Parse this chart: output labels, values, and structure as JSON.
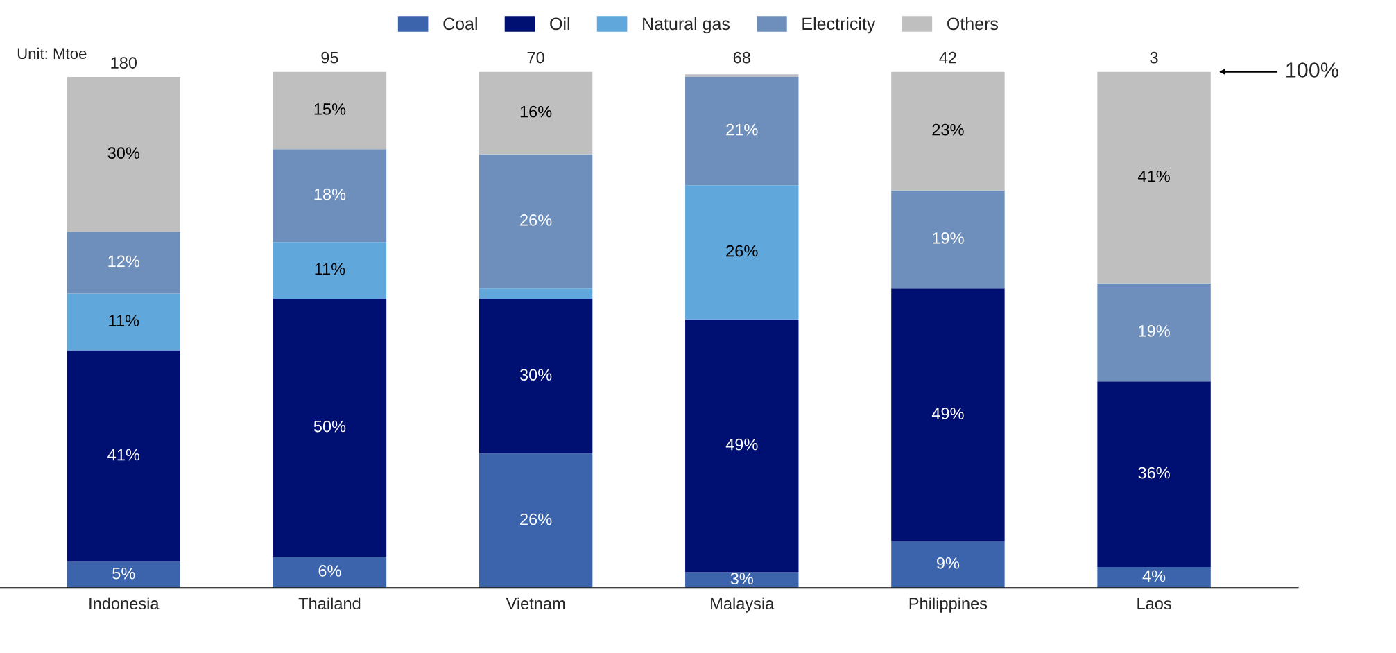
{
  "chart_data": {
    "type": "bar",
    "stacked": true,
    "categories": [
      "Indonesia",
      "Thailand",
      "Vietnam",
      "Malaysia",
      "Philippines",
      "Laos"
    ],
    "series": [
      {
        "name": "Coal",
        "color": "#3c64ad",
        "values": [
          5,
          6,
          26,
          3,
          9,
          4
        ],
        "value_labels": [
          "5%",
          "6%",
          "26%",
          "3%",
          "9%",
          "4%"
        ]
      },
      {
        "name": "Oil",
        "color": "#000f72",
        "values": [
          41,
          50,
          30,
          49,
          49,
          36
        ],
        "value_labels": [
          "41%",
          "50%",
          "30%",
          "49%",
          "49%",
          "36%"
        ]
      },
      {
        "name": "Natural gas",
        "color": "#60a8dc",
        "values": [
          11,
          11,
          2,
          26,
          0,
          0
        ],
        "value_labels": [
          "11%",
          "11%",
          null,
          "26%",
          null,
          null
        ]
      },
      {
        "name": "Electricity",
        "color": "#6e8fbb",
        "values": [
          12,
          18,
          26,
          21,
          19,
          19
        ],
        "value_labels": [
          "12%",
          "18%",
          "26%",
          "21%",
          "19%",
          "19%"
        ]
      },
      {
        "name": "Others",
        "color": "#bfbfbf",
        "values": [
          30,
          15,
          16,
          0.5,
          23,
          41
        ],
        "value_labels": [
          "30%",
          "15%",
          "16%",
          null,
          "23%",
          "41%"
        ]
      }
    ],
    "ylim": [
      0,
      100
    ],
    "legend": "top",
    "annotations": [
      "Unit: Mtoe",
      "100%",
      {
        "text": "180",
        "x": "Indonesia",
        "y": 99
      },
      {
        "text": "95",
        "x": "Thailand",
        "y": 100
      },
      {
        "text": "70",
        "x": "Vietnam",
        "y": 100
      },
      {
        "text": "68",
        "x": "Malaysia",
        "y": 100
      },
      {
        "text": "42",
        "x": "Philippines",
        "y": 100
      },
      {
        "text": "3",
        "x": "Laos",
        "y": 100
      }
    ]
  }
}
